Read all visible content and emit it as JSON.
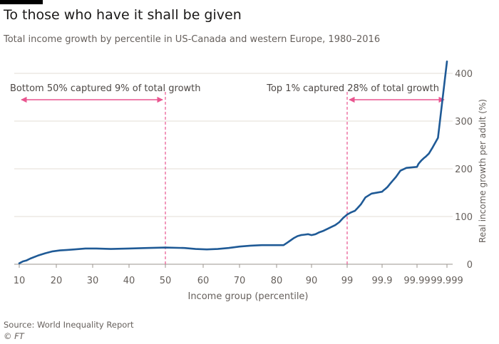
{
  "title": "To those who have it shall be given",
  "subtitle": "Total income growth by percentile in US-Canada and western Europe, 1980–2016",
  "source": "Source: World Inequality Report",
  "copyright": "© FT",
  "colors": {
    "line": "#1f5a96",
    "annotation": "#e9558f",
    "grid": "#e3dcd6",
    "text": "#66605c"
  },
  "chart_data": {
    "type": "line",
    "title": "To those who have it shall be given",
    "subtitle": "Total income growth by percentile in US-Canada and western Europe, 1980–2016",
    "xlabel": "Income group (percentile)",
    "ylabel": "Real income growth per adult (%)",
    "x_ticks": [
      "10",
      "20",
      "30",
      "40",
      "50",
      "60",
      "70",
      "80",
      "90",
      "99",
      "99.9",
      "99.99",
      "99.999"
    ],
    "y_ticks": [
      0,
      100,
      200,
      300,
      400
    ],
    "ylim": [
      0,
      430
    ],
    "grid": true,
    "series": [
      {
        "name": "",
        "x": [
          "10",
          "11",
          "12",
          "13",
          "15",
          "17",
          "19",
          "21",
          "23",
          "25",
          "28",
          "31",
          "35",
          "40",
          "45",
          "50",
          "55",
          "58",
          "61",
          "64",
          "67",
          "70",
          "73",
          "76",
          "79",
          "82",
          "83",
          "84",
          "85",
          "86",
          "87",
          "88",
          "89",
          "90",
          "91",
          "92",
          "93",
          "94",
          "95",
          "96",
          "97",
          "98",
          "99",
          "99.1",
          "99.2",
          "99.3",
          "99.4",
          "99.5",
          "99.6",
          "99.7",
          "99.8",
          "99.9",
          "99.91",
          "99.92",
          "99.93",
          "99.94",
          "99.95",
          "99.96",
          "99.97",
          "99.98",
          "99.99",
          "99.991",
          "99.992",
          "99.993",
          "99.994",
          "99.995",
          "99.996",
          "99.997",
          "99.998",
          "99.999"
        ],
        "values": [
          2,
          6,
          8,
          12,
          18,
          23,
          27,
          29,
          30,
          31,
          33,
          33,
          32,
          33,
          34,
          35,
          34,
          32,
          31,
          32,
          34,
          37,
          39,
          40,
          40,
          40,
          45,
          50,
          55,
          59,
          61,
          62,
          63,
          61,
          63,
          67,
          70,
          74,
          78,
          82,
          88,
          97,
          104,
          106,
          108,
          110,
          112,
          118,
          126,
          140,
          148,
          152,
          155,
          158,
          162,
          168,
          175,
          183,
          196,
          202,
          204,
          210,
          214,
          218,
          222,
          226,
          232,
          245,
          265,
          425
        ]
      }
    ],
    "annotations": [
      {
        "text": "Bottom 50% captured 9% of total growth",
        "from": "10",
        "to": "50",
        "marker": "50"
      },
      {
        "text": "Top 1% captured 28% of total growth",
        "from": "99",
        "to": "99.999",
        "marker": "99"
      }
    ]
  }
}
